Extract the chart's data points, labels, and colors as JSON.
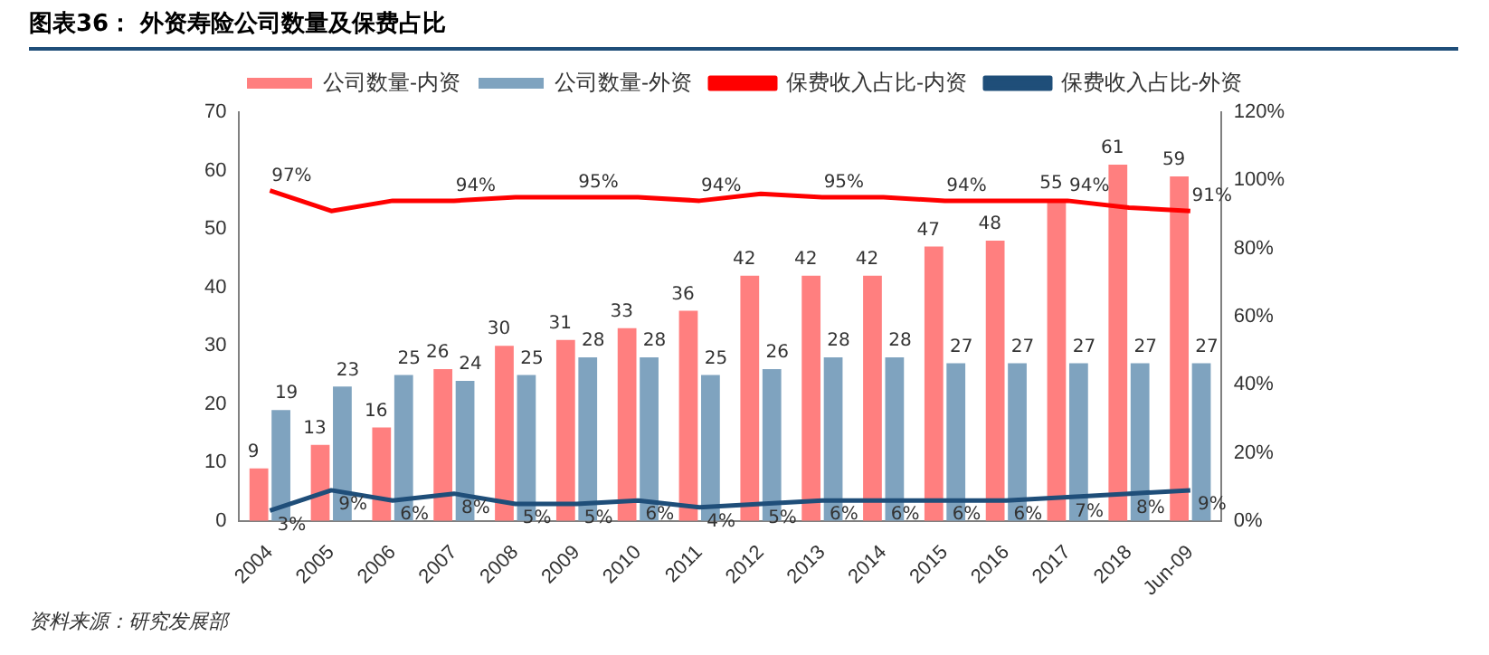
{
  "chart_data": {
    "type": "bar",
    "title": "图表36：  外资寿险公司数量及保费占比",
    "categories": [
      "2004",
      "2005",
      "2006",
      "2007",
      "2008",
      "2009",
      "2010",
      "2011",
      "2012",
      "2013",
      "2014",
      "2015",
      "2016",
      "2017",
      "2018",
      "Jun-09"
    ],
    "series": [
      {
        "name": "公司数量-内资",
        "color": "#ff7f7f",
        "values": [
          9,
          13,
          16,
          26,
          30,
          31,
          33,
          36,
          42,
          42,
          42,
          47,
          48,
          55,
          61,
          59
        ],
        "value_labels": [
          "9",
          "13",
          "16",
          "26",
          "30",
          "31",
          "33",
          "36",
          "42",
          "42",
          "42",
          "47",
          "48",
          "55",
          "61",
          "59"
        ]
      },
      {
        "name": "公司数量-外资",
        "color": "#7fa3bf",
        "values": [
          19,
          23,
          25,
          24,
          25,
          28,
          28,
          25,
          26,
          28,
          28,
          27,
          27,
          27,
          27,
          27
        ],
        "value_labels": [
          "19",
          "23",
          "25",
          "24",
          "25",
          "28",
          "28",
          "25",
          "26",
          "28",
          "28",
          "27",
          "27",
          "27",
          "27",
          "27"
        ]
      },
      {
        "name": "保费收入占比-内资",
        "type": "line",
        "axis": "y2",
        "color": "#ff0000",
        "values": [
          97,
          91,
          94,
          94,
          95,
          95,
          95,
          94,
          96,
          95,
          95,
          94,
          94,
          94,
          92,
          91
        ],
        "value_labels": [
          "97%",
          null,
          null,
          "94%",
          null,
          "95%",
          null,
          "94%",
          null,
          "95%",
          null,
          "94%",
          null,
          "94%",
          null,
          "91%"
        ]
      },
      {
        "name": "保费收入占比-外资",
        "type": "line",
        "axis": "y2",
        "color": "#1f4e79",
        "values": [
          3,
          9,
          6,
          8,
          5,
          5,
          6,
          4,
          5,
          6,
          6,
          6,
          6,
          7,
          8,
          9
        ],
        "value_labels": [
          "3%",
          "9%",
          "6%",
          "8%",
          "5%",
          "5%",
          "6%",
          "4%",
          "5%",
          "6%",
          "6%",
          "6%",
          "6%",
          "7%",
          "8%",
          "9%"
        ]
      }
    ],
    "ylim": [
      0,
      70
    ],
    "yticks": [
      0,
      10,
      20,
      30,
      40,
      50,
      60,
      70
    ],
    "y2lim": [
      0,
      120
    ],
    "y2ticks": [
      {
        "value": 0,
        "label": "0%"
      },
      {
        "value": 20,
        "label": "20%"
      },
      {
        "value": 40,
        "label": "40%"
      },
      {
        "value": 60,
        "label": "60%"
      },
      {
        "value": 80,
        "label": "80%"
      },
      {
        "value": 100,
        "label": "100%"
      },
      {
        "value": 120,
        "label": "120%"
      }
    ],
    "legend": "top",
    "grid": false,
    "marker": "none",
    "line_style": "solid",
    "annotations": [
      "资料来源：研究发展部"
    ]
  }
}
